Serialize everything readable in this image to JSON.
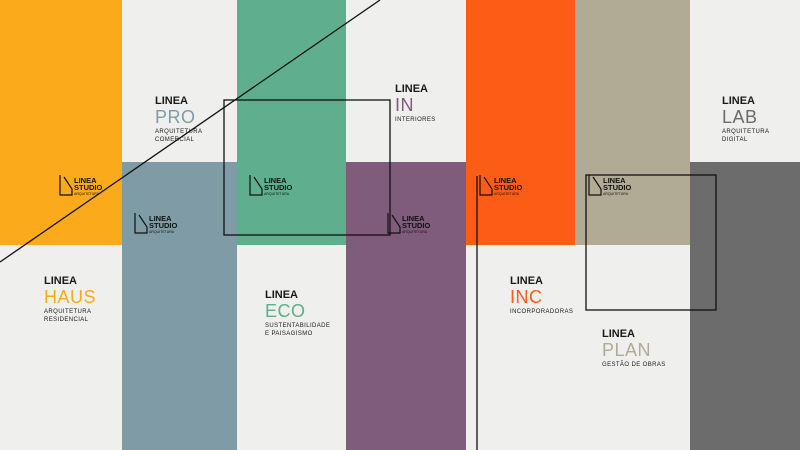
{
  "brands": [
    {
      "name": "LINEA",
      "sub": "PRO",
      "description": [
        "ARQUITETURA",
        "COMERCIAL"
      ]
    },
    {
      "name": "LINEA",
      "sub": "IN",
      "description": [
        "INTERIORES"
      ]
    },
    {
      "name": "LINEA",
      "sub": "LAB",
      "description": [
        "ARQUITETURA",
        "DIGITAL"
      ]
    },
    {
      "name": "LINEA",
      "sub": "HAUS",
      "description": [
        "ARQUITETURA",
        "RESIDENCIAL"
      ]
    },
    {
      "name": "LINEA",
      "sub": "ECO",
      "description": [
        "SUSTENTABILIDADE",
        "E PAISAGISMO"
      ]
    },
    {
      "name": "LINEA",
      "sub": "INC",
      "description": [
        "INCORPORADORAS"
      ]
    },
    {
      "name": "LINEA",
      "sub": "PLAN",
      "description": [
        "GESTÃO DE OBRAS"
      ]
    }
  ],
  "studio_logos": [
    {
      "name": "LINEA",
      "sub": "STUDIO",
      "tagline": "ARQUITETURA"
    },
    {
      "name": "LINEA",
      "sub": "STUDIO",
      "tagline": "ARQUITETURA"
    },
    {
      "name": "LINEA",
      "sub": "STUDIO",
      "tagline": "ARQUITETURA"
    },
    {
      "name": "LINEA",
      "sub": "STUDIO",
      "tagline": "ARQUITETURA"
    },
    {
      "name": "LINEA",
      "sub": "STUDIO",
      "tagline": "ARQUITETURA"
    },
    {
      "name": "LINEA",
      "sub": "STUDIO",
      "tagline": "ARQUITETURA"
    }
  ]
}
